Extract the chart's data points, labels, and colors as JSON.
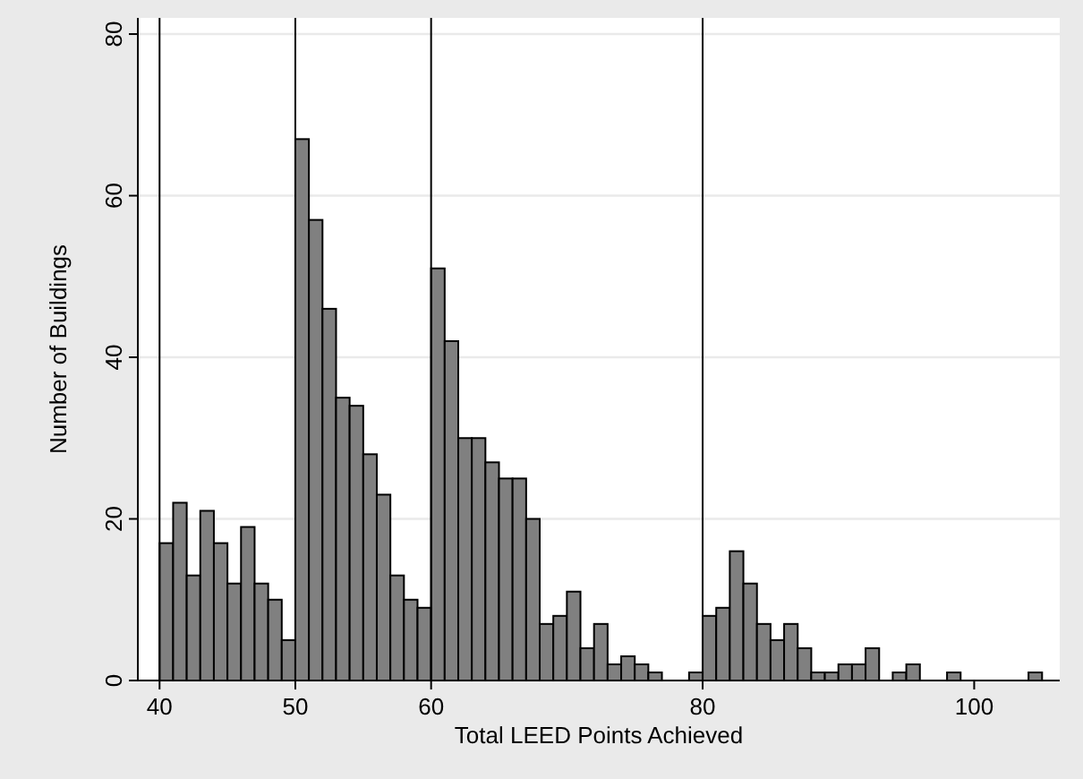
{
  "chart_data": {
    "type": "histogram",
    "xlabel": "Total LEED Points Achieved",
    "ylabel": "Number of Buildings",
    "bins": [
      40,
      41,
      42,
      43,
      44,
      45,
      46,
      47,
      48,
      49,
      50,
      51,
      52,
      53,
      54,
      55,
      56,
      57,
      58,
      59,
      60,
      61,
      62,
      63,
      64,
      65,
      66,
      67,
      68,
      69,
      70,
      71,
      72,
      73,
      74,
      75,
      76,
      77,
      78,
      79,
      80,
      81,
      82,
      83,
      84,
      85,
      86,
      87,
      88,
      89,
      90,
      91,
      92,
      93,
      94,
      95,
      96,
      97,
      98,
      99,
      100,
      101,
      102,
      103,
      104,
      105
    ],
    "values": [
      17,
      22,
      13,
      21,
      17,
      12,
      19,
      12,
      10,
      5,
      67,
      57,
      46,
      35,
      34,
      28,
      23,
      13,
      10,
      9,
      51,
      42,
      30,
      30,
      27,
      25,
      25,
      20,
      7,
      8,
      11,
      4,
      7,
      2,
      3,
      2,
      1,
      0,
      0,
      1,
      8,
      9,
      16,
      12,
      7,
      5,
      7,
      4,
      1,
      1,
      2,
      2,
      4,
      0,
      1,
      2,
      0,
      0,
      1,
      0,
      0,
      0,
      0,
      0,
      1
    ],
    "color": "#808080",
    "xlim": [
      38.4,
      106.3
    ],
    "ylim": [
      0,
      82
    ],
    "xticks": [
      40,
      50,
      60,
      80,
      100
    ],
    "yticks": [
      0,
      20,
      40,
      60,
      80
    ],
    "grid": "y",
    "ref_lines": [
      {
        "axis": "x",
        "value": 40
      },
      {
        "axis": "x",
        "value": 50
      },
      {
        "axis": "x",
        "value": 60
      },
      {
        "axis": "x",
        "value": 80
      }
    ]
  }
}
